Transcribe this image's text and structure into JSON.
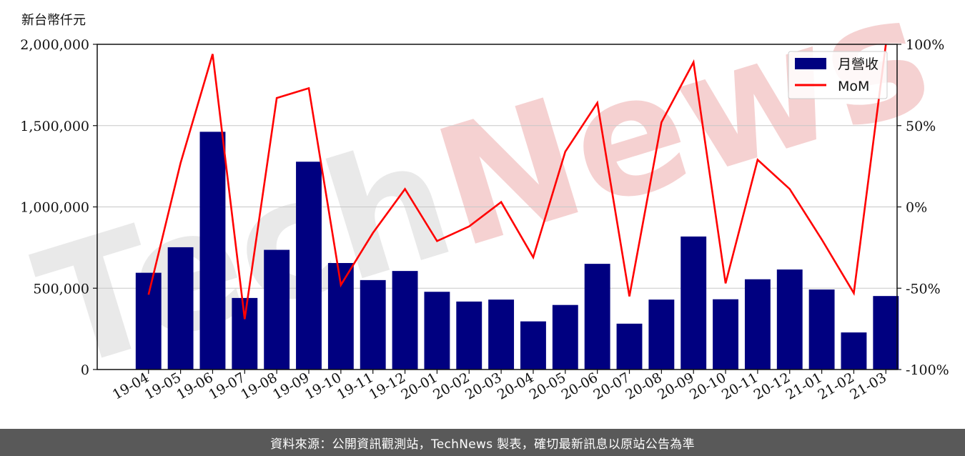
{
  "chart_data": {
    "type": "bar",
    "title": "",
    "ylabel": "新台幣仟元",
    "xlabel": "",
    "categories": [
      "19-04",
      "19-05",
      "19-06",
      "19-07",
      "19-08",
      "19-09",
      "19-10",
      "19-11",
      "19-12",
      "20-01",
      "20-02",
      "20-03",
      "20-04",
      "20-05",
      "20-06",
      "20-07",
      "20-08",
      "20-09",
      "20-10",
      "20-11",
      "20-12",
      "21-01",
      "21-02",
      "21-03"
    ],
    "series": [
      {
        "name": "月營收",
        "type": "bar",
        "axis": "left",
        "color": "#000080",
        "values": [
          595000,
          752000,
          1462000,
          440000,
          736000,
          1278000,
          655000,
          550000,
          606000,
          478000,
          418000,
          430000,
          296000,
          397000,
          650000,
          282000,
          430000,
          818000,
          432000,
          555000,
          615000,
          492000,
          228000,
          452000
        ]
      },
      {
        "name": "MoM",
        "type": "line",
        "axis": "right",
        "color": "#ff0000",
        "values": [
          -54,
          27,
          94,
          -69,
          67,
          73,
          -48,
          -16,
          11,
          -21,
          -12,
          3,
          -31,
          34,
          64,
          -55,
          52,
          89,
          -47,
          29,
          11,
          -20,
          -53,
          100
        ]
      }
    ],
    "ylim": [
      0,
      2000000
    ],
    "y2lim": [
      -100,
      100
    ],
    "yticks": [
      "0",
      "500,000",
      "1,000,000",
      "1,500,000",
      "2,000,000"
    ],
    "y2ticks": [
      "-100%",
      "-50%",
      "0%",
      "50%",
      "100%"
    ],
    "grid": true,
    "legend_position": "top-right"
  },
  "footer": {
    "text": "資料來源：公開資訊觀測站，TechNews 製表，確切最新訊息以原站公告為準"
  }
}
